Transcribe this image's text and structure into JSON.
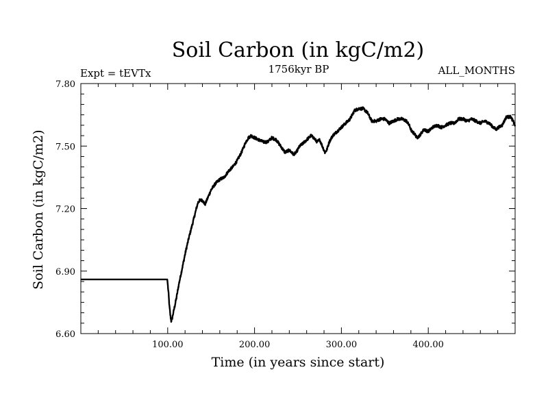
{
  "chart_data": {
    "type": "line",
    "title": "Soil Carbon (in kgC/m2)",
    "subtitle_left": "Expt = tEVTx",
    "subtitle_center": "1756kyr BP",
    "subtitle_right": "ALL_MONTHS",
    "xlabel": "Time (in years since start)",
    "ylabel": "Soil Carbon (in kgC/m2)",
    "xlim": [
      0,
      500
    ],
    "ylim": [
      6.6,
      7.8
    ],
    "x_ticks": [
      100,
      200,
      300,
      400
    ],
    "x_tick_labels": [
      "100.00",
      "200.00",
      "300.00",
      "400.00"
    ],
    "y_ticks": [
      6.6,
      6.9,
      7.2,
      7.5,
      7.8
    ],
    "y_tick_labels": [
      "6.60",
      "6.90",
      "7.20",
      "7.50",
      "7.80"
    ],
    "series": [
      {
        "name": "Soil Carbon",
        "color": "#000000",
        "x": [
          0,
          99.5,
          100,
          101,
          102,
          103,
          104,
          105,
          107,
          110,
          113,
          117,
          121,
          125,
          130,
          133,
          135,
          137,
          140,
          143,
          146,
          150,
          155,
          160,
          165,
          170,
          175,
          180,
          185,
          190,
          193,
          196,
          200,
          205,
          210,
          215,
          220,
          225,
          230,
          235,
          240,
          245,
          248,
          252,
          255,
          260,
          265,
          268,
          272,
          275,
          278,
          281,
          283,
          286,
          290,
          295,
          300,
          305,
          310,
          315,
          320,
          325,
          330,
          335,
          340,
          345,
          350,
          355,
          360,
          365,
          370,
          375,
          378,
          381,
          384,
          387,
          390,
          395,
          400,
          405,
          410,
          415,
          420,
          425,
          430,
          435,
          440,
          445,
          450,
          455,
          460,
          465,
          470,
          475,
          478,
          481,
          485,
          490,
          495,
          500
        ],
        "y": [
          6.86,
          6.86,
          6.84,
          6.79,
          6.73,
          6.69,
          6.66,
          6.67,
          6.71,
          6.77,
          6.84,
          6.92,
          7.0,
          7.07,
          7.15,
          7.2,
          7.23,
          7.24,
          7.24,
          7.22,
          7.25,
          7.29,
          7.32,
          7.34,
          7.35,
          7.38,
          7.4,
          7.43,
          7.47,
          7.52,
          7.54,
          7.55,
          7.54,
          7.53,
          7.52,
          7.52,
          7.54,
          7.53,
          7.5,
          7.47,
          7.48,
          7.46,
          7.47,
          7.5,
          7.51,
          7.53,
          7.55,
          7.54,
          7.52,
          7.53,
          7.5,
          7.47,
          7.48,
          7.52,
          7.55,
          7.57,
          7.59,
          7.61,
          7.63,
          7.67,
          7.68,
          7.68,
          7.66,
          7.62,
          7.62,
          7.63,
          7.63,
          7.61,
          7.62,
          7.63,
          7.63,
          7.62,
          7.6,
          7.57,
          7.56,
          7.54,
          7.55,
          7.58,
          7.57,
          7.59,
          7.6,
          7.59,
          7.6,
          7.61,
          7.61,
          7.63,
          7.63,
          7.62,
          7.63,
          7.62,
          7.61,
          7.62,
          7.61,
          7.59,
          7.58,
          7.59,
          7.6,
          7.64,
          7.64,
          7.6
        ]
      }
    ]
  }
}
